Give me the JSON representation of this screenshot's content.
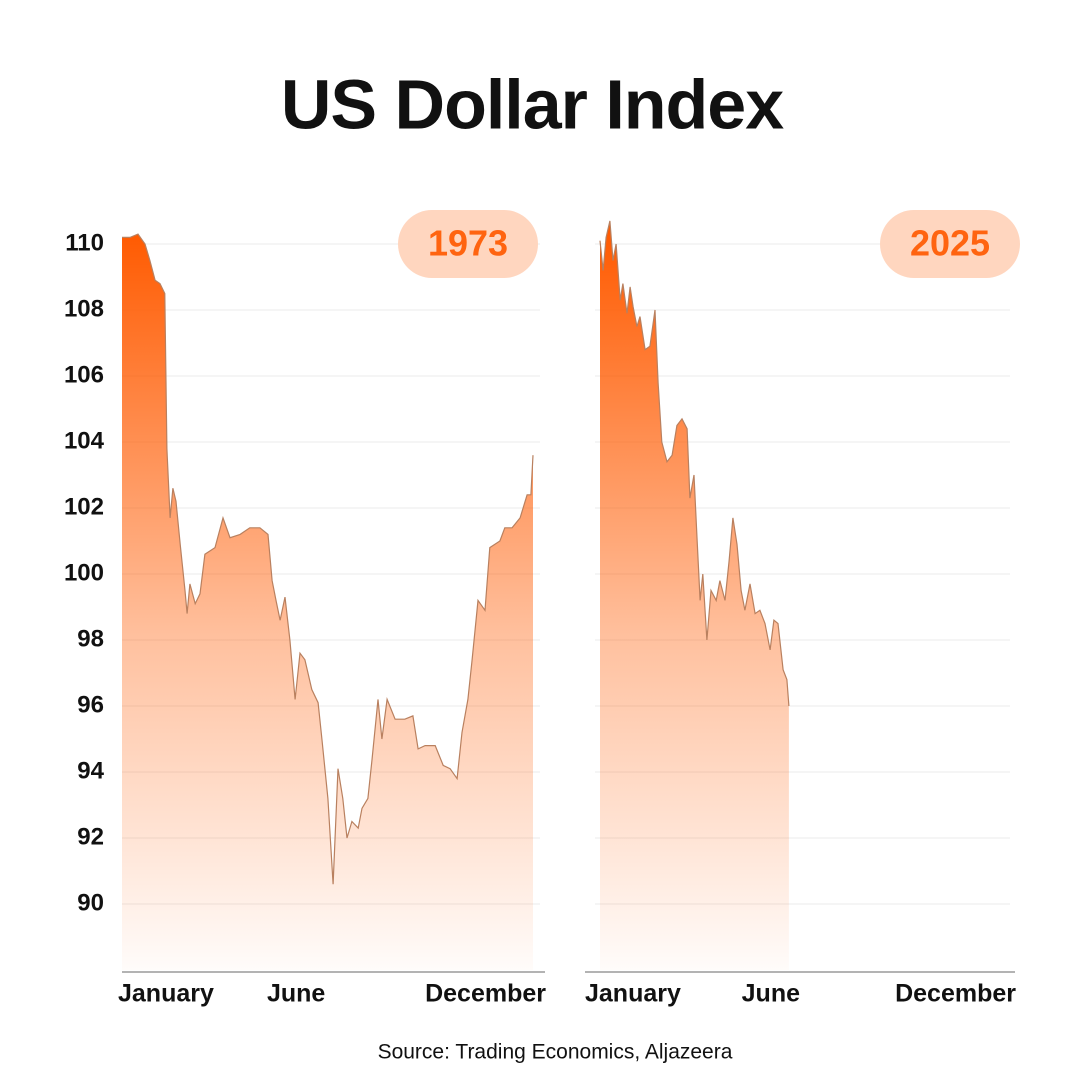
{
  "title": "US Dollar Index",
  "source": "Source: Trading Economics, Aljazeera",
  "chart_data": [
    {
      "type": "area",
      "title": "1973",
      "color": "#ff5a00",
      "line_color": "#b9805f",
      "xlim": [
        1,
        13
      ],
      "ylim": [
        88,
        111
      ],
      "xticks": [
        {
          "value": 1,
          "label": "January"
        },
        {
          "value": 6,
          "label": "June"
        },
        {
          "value": 12,
          "label": "December"
        }
      ],
      "yticks": [
        90,
        92,
        94,
        96,
        98,
        100,
        102,
        104,
        106,
        108,
        110
      ],
      "x": [
        1.0,
        1.23,
        1.46,
        1.66,
        1.8,
        1.95,
        2.09,
        2.23,
        2.29,
        2.38,
        2.46,
        2.55,
        2.67,
        2.81,
        2.87,
        2.95,
        3.1,
        3.24,
        3.38,
        3.67,
        3.9,
        4.1,
        4.39,
        4.67,
        4.96,
        5.19,
        5.31,
        5.42,
        5.54,
        5.68,
        5.82,
        5.97,
        6.11,
        6.25,
        6.45,
        6.63,
        6.74,
        6.91,
        7.06,
        7.2,
        7.34,
        7.46,
        7.6,
        7.78,
        7.89,
        8.06,
        8.18,
        8.35,
        8.46,
        8.61,
        8.84,
        9.12,
        9.35,
        9.5,
        9.7,
        9.99,
        10.22,
        10.42,
        10.62,
        10.76,
        10.93,
        11.05,
        11.22,
        11.42,
        11.56,
        11.85,
        11.99,
        12.2,
        12.43,
        12.63,
        12.74,
        12.8
      ],
      "values": [
        110.2,
        110.2,
        110.3,
        110.0,
        109.5,
        108.9,
        108.8,
        108.5,
        103.8,
        101.7,
        102.6,
        102.2,
        100.9,
        99.5,
        98.8,
        99.7,
        99.1,
        99.4,
        100.6,
        100.8,
        101.7,
        101.1,
        101.2,
        101.4,
        101.4,
        101.2,
        99.8,
        99.2,
        98.6,
        99.3,
        98.0,
        96.2,
        97.6,
        97.4,
        96.5,
        96.1,
        95.0,
        93.2,
        90.6,
        94.1,
        93.2,
        92.0,
        92.5,
        92.3,
        92.9,
        93.2,
        94.4,
        96.2,
        95.0,
        96.2,
        95.6,
        95.6,
        95.7,
        94.7,
        94.8,
        94.8,
        94.2,
        94.1,
        93.8,
        95.2,
        96.2,
        97.4,
        99.2,
        98.9,
        100.8,
        101.0,
        101.4,
        101.4,
        101.7,
        102.4,
        102.4,
        103.6
      ]
    },
    {
      "type": "area",
      "title": "2025",
      "color": "#ff5a00",
      "line_color": "#b9805f",
      "xlim": [
        1,
        13
      ],
      "ylim": [
        88,
        111
      ],
      "xticks": [
        {
          "value": 1,
          "label": "January"
        },
        {
          "value": 6,
          "label": "June"
        },
        {
          "value": 12,
          "label": "December"
        }
      ],
      "yticks": [
        90,
        92,
        94,
        96,
        98,
        100,
        102,
        104,
        106,
        108,
        110
      ],
      "x": [
        1.0,
        1.09,
        1.18,
        1.29,
        1.38,
        1.47,
        1.59,
        1.67,
        1.79,
        1.88,
        1.97,
        2.08,
        2.17,
        2.32,
        2.46,
        2.61,
        2.7,
        2.81,
        2.96,
        3.11,
        3.25,
        3.4,
        3.55,
        3.63,
        3.75,
        3.84,
        3.93,
        4.01,
        4.13,
        4.25,
        4.4,
        4.51,
        4.66,
        4.78,
        4.89,
        5.01,
        5.13,
        5.24,
        5.39,
        5.54,
        5.68,
        5.83,
        5.98,
        6.09,
        6.21,
        6.36,
        6.47,
        6.53
      ],
      "values": [
        110.1,
        109.2,
        110.2,
        110.7,
        109.5,
        110.0,
        108.3,
        108.8,
        107.9,
        108.7,
        108.1,
        107.5,
        107.8,
        106.8,
        106.9,
        108.0,
        105.8,
        104.0,
        103.4,
        103.6,
        104.5,
        104.7,
        104.4,
        102.3,
        103.0,
        101.1,
        99.2,
        100.0,
        98.0,
        99.5,
        99.2,
        99.8,
        99.2,
        100.4,
        101.7,
        100.9,
        99.5,
        98.9,
        99.7,
        98.8,
        98.9,
        98.5,
        97.7,
        98.6,
        98.5,
        97.1,
        96.8,
        96.0
      ]
    }
  ]
}
